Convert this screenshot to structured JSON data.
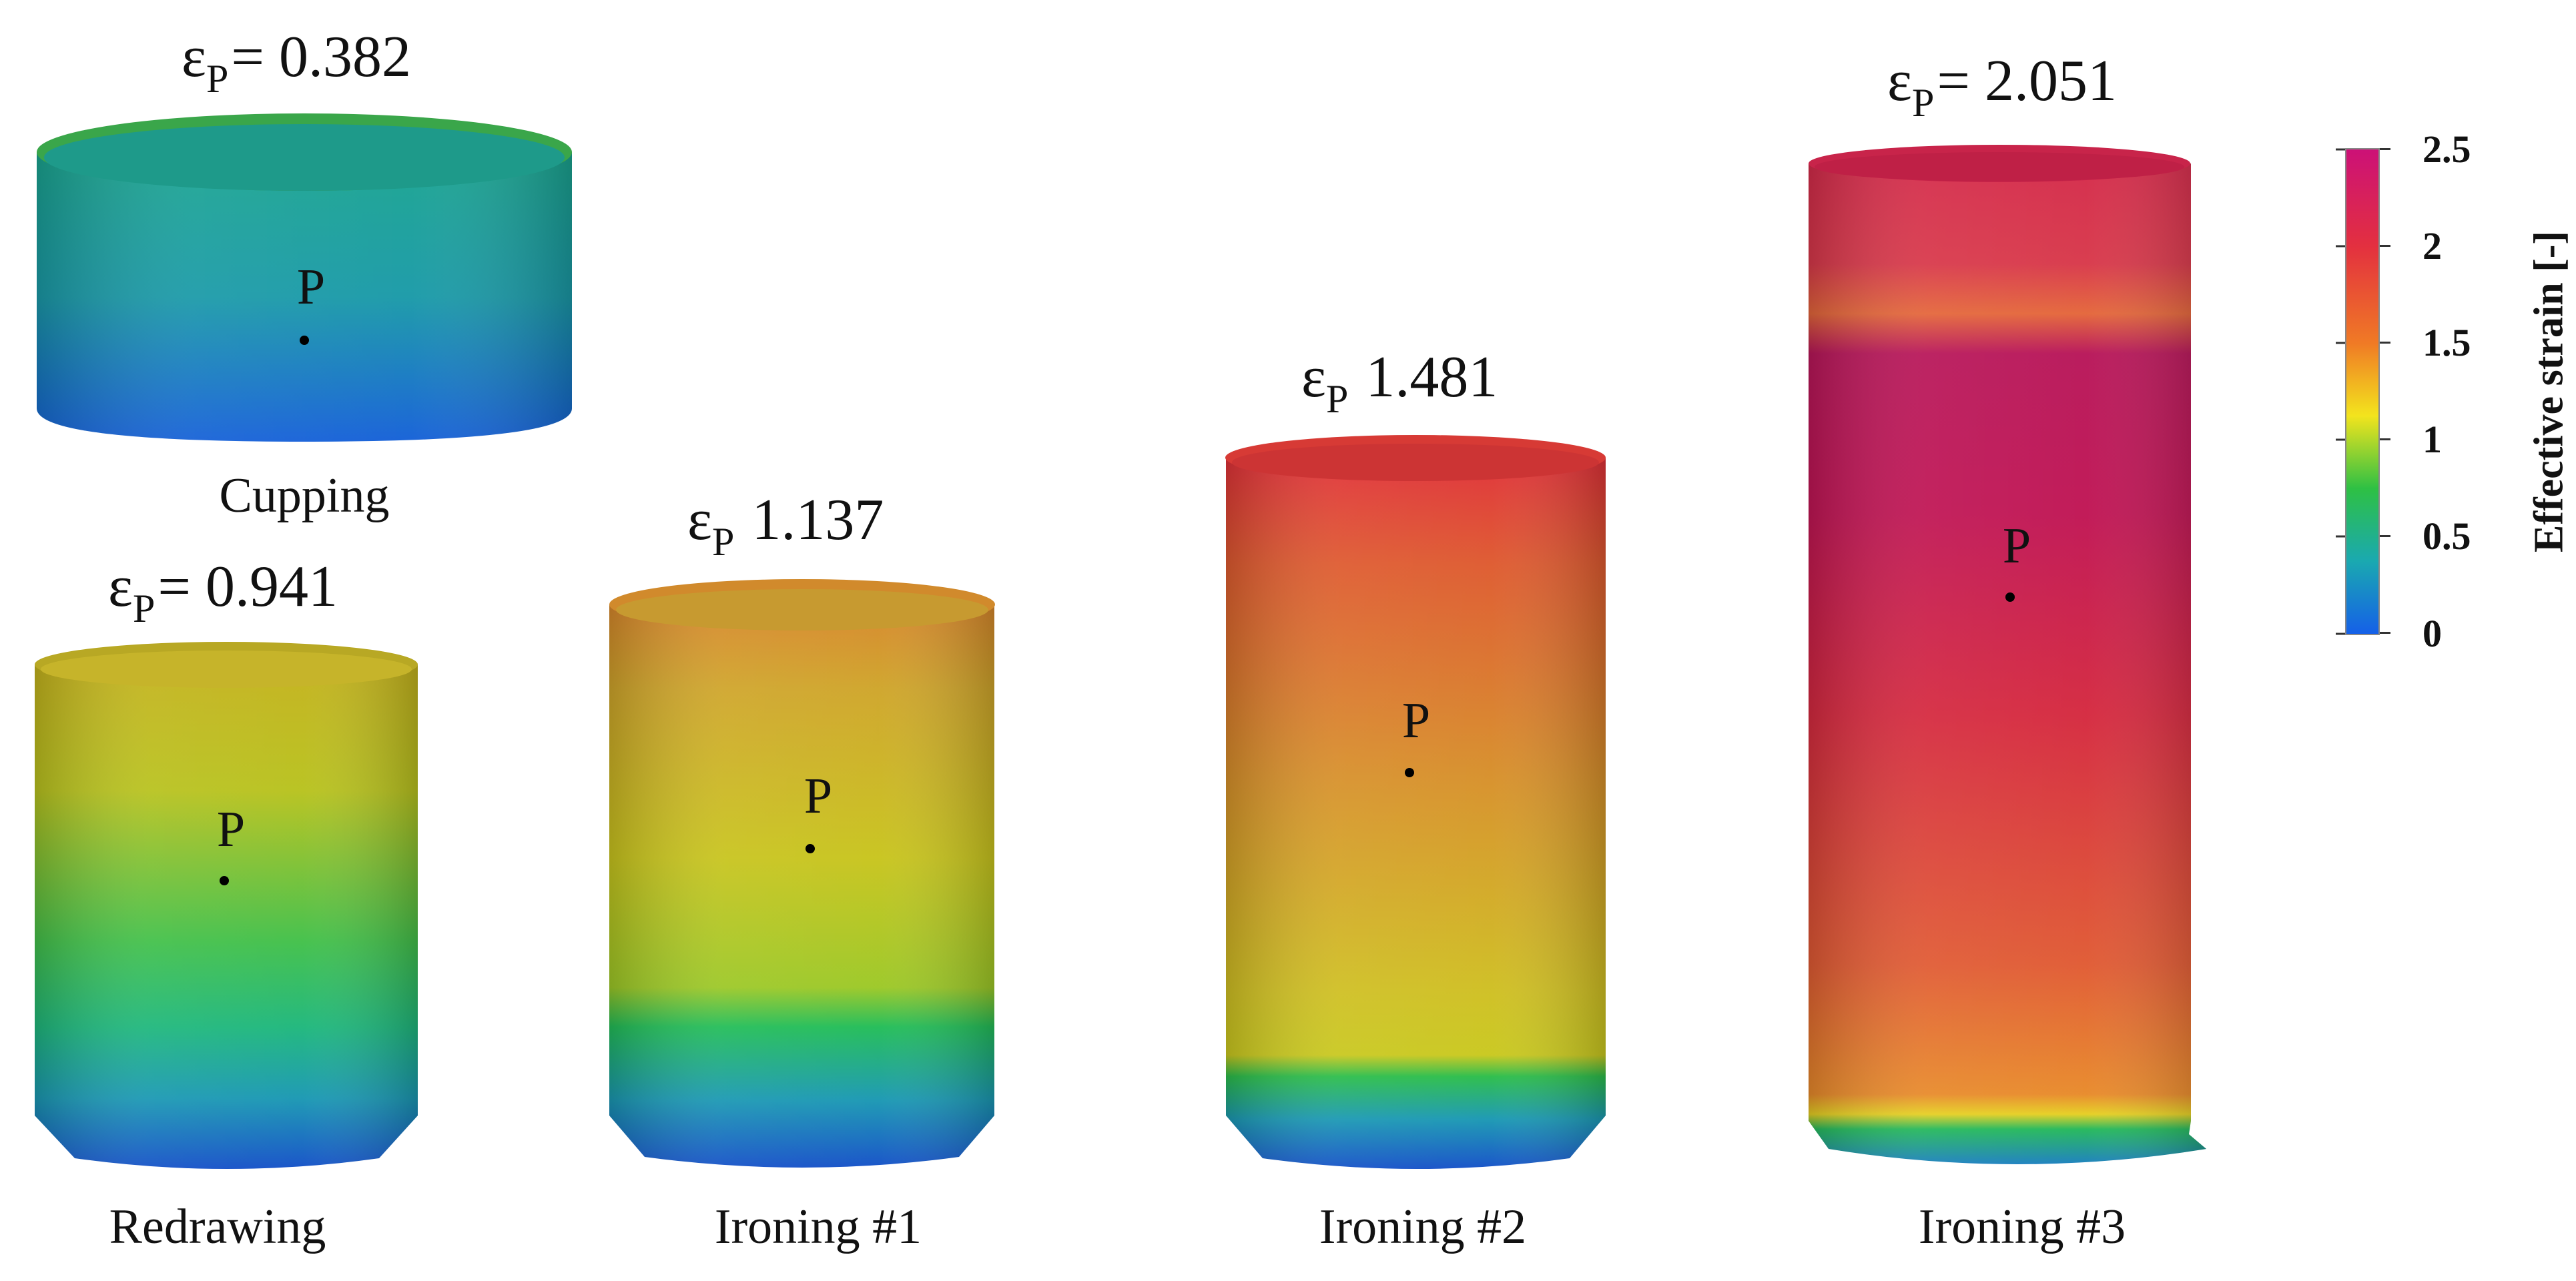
{
  "colorbar": {
    "title": "Effective strain [-]",
    "ticks": [
      "2.5",
      "2",
      "1.5",
      "1",
      "0.5",
      "0"
    ],
    "colors": [
      "#cc1177",
      "#e3303f",
      "#f07a25",
      "#f3e41d",
      "#2ec044",
      "#1aa9b0",
      "#1560e8"
    ]
  },
  "stages": [
    {
      "name": "Cupping",
      "symbol": "ε",
      "sub": "P",
      "value": "= 0.382",
      "point": "P"
    },
    {
      "name": "Redrawing",
      "symbol": "ε",
      "sub": "P",
      "value": "= 0.941",
      "point": "P"
    },
    {
      "name": "Ironing #1",
      "symbol": "ε",
      "sub": "P",
      "value": " 1.137",
      "point": "P"
    },
    {
      "name": "Ironing #2",
      "symbol": "ε",
      "sub": "P",
      "value": " 1.481",
      "point": "P"
    },
    {
      "name": "Ironing #3",
      "symbol": "ε",
      "sub": "P",
      "value": "= 2.051",
      "point": "P"
    }
  ]
}
